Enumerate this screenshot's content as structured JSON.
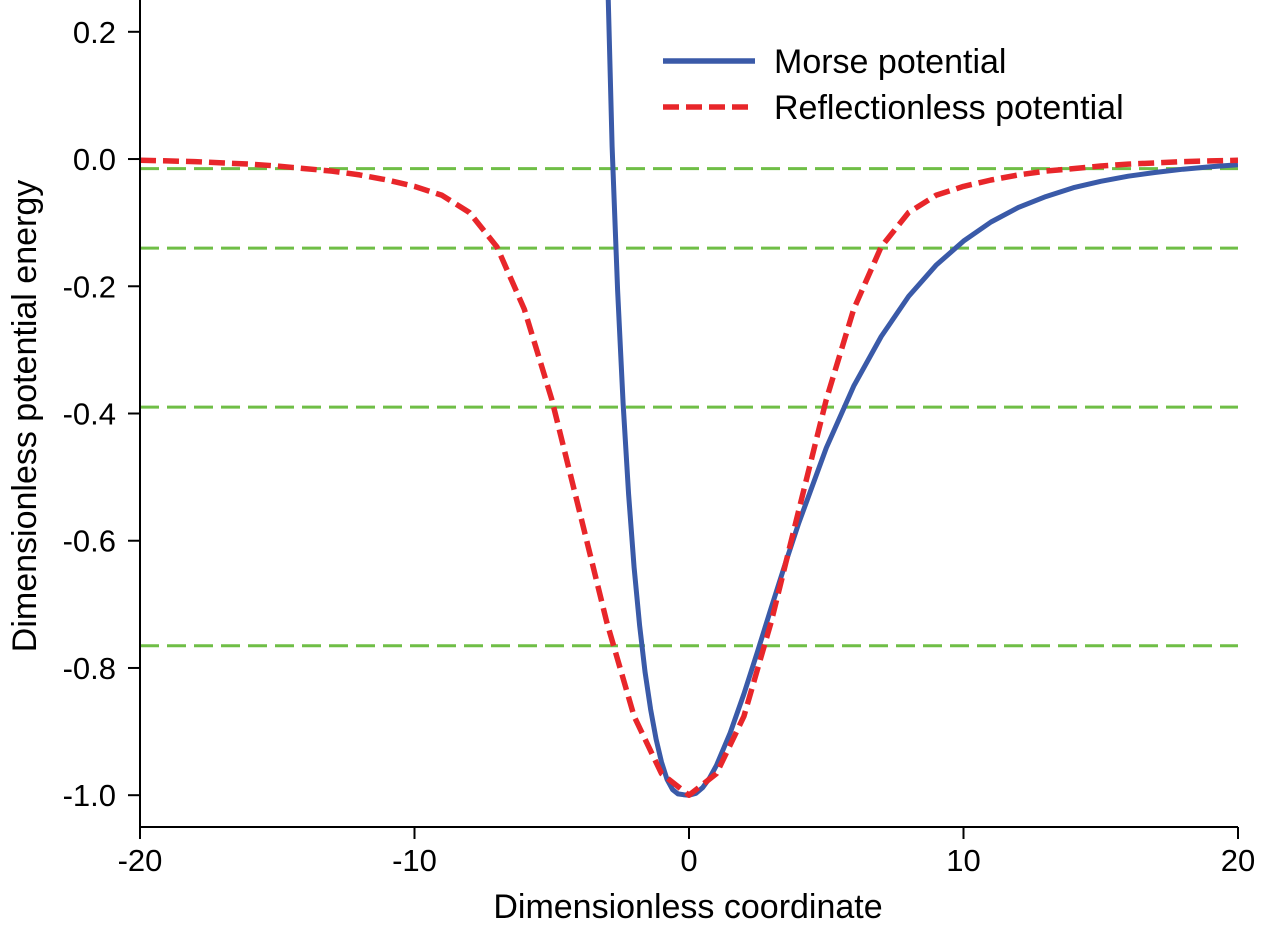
{
  "chart_data": {
    "type": "line",
    "xlabel": "Dimensionless coordinate",
    "ylabel": "Dimensionless potential energy",
    "xlim": [
      -20,
      20
    ],
    "ylim": [
      -1.05,
      0.25
    ],
    "xticks": [
      -20,
      -10,
      0,
      10,
      20
    ],
    "xtick_labels": [
      "-20",
      "-10",
      "0",
      "10",
      "20"
    ],
    "yticks": [
      -1.0,
      -0.8,
      -0.6,
      -0.4,
      -0.2,
      0.0,
      0.2
    ],
    "ytick_labels": [
      "-1.0",
      "-0.8",
      "-0.6",
      "-0.4",
      "-0.2",
      "0.0",
      "0.2"
    ],
    "grid": false,
    "legend_position": "top-right",
    "series": [
      {
        "name": "Morse potential",
        "color": "#3a5aa8",
        "style": "solid",
        "x": [
          -2.95,
          -2.8,
          -2.6,
          -2.4,
          -2.2,
          -2.0,
          -1.8,
          -1.6,
          -1.4,
          -1.2,
          -1.0,
          -0.8,
          -0.6,
          -0.4,
          -0.2,
          0.0,
          0.25,
          0.5,
          0.75,
          1.0,
          1.5,
          2.0,
          2.5,
          3.0,
          3.5,
          4.0,
          5.0,
          6.0,
          7.0,
          8.0,
          9.0,
          10.0,
          11.0,
          12.0,
          13.0,
          14.0,
          15.0,
          16.0,
          17.0,
          18.0,
          19.0,
          20.0
        ],
        "y": [
          0.266,
          0.02,
          -0.206,
          -0.384,
          -0.527,
          -0.642,
          -0.733,
          -0.807,
          -0.865,
          -0.912,
          -0.948,
          -0.975,
          -0.991,
          -0.998,
          -0.9993,
          -1.0,
          -0.997,
          -0.988,
          -0.973,
          -0.953,
          -0.902,
          -0.841,
          -0.774,
          -0.705,
          -0.637,
          -0.572,
          -0.454,
          -0.357,
          -0.279,
          -0.216,
          -0.167,
          -0.129,
          -0.099,
          -0.076,
          -0.059,
          -0.045,
          -0.035,
          -0.027,
          -0.021,
          -0.016,
          -0.012,
          -0.009
        ]
      },
      {
        "name": "Reflectionless potential",
        "color": "#e8262a",
        "style": "dashed",
        "x": [
          -20,
          -19,
          -18,
          -17,
          -16,
          -15,
          -14,
          -13,
          -12,
          -11,
          -10,
          -9,
          -8,
          -7,
          -6,
          -5,
          -4,
          -3,
          -2,
          -1,
          0,
          1,
          2,
          3,
          4,
          5,
          6,
          7,
          8,
          9,
          10,
          11,
          12,
          13,
          14,
          15,
          16,
          17,
          18,
          19,
          20
        ],
        "y": [
          -0.002,
          -0.003,
          -0.004,
          -0.006,
          -0.008,
          -0.011,
          -0.015,
          -0.019,
          -0.025,
          -0.033,
          -0.043,
          -0.057,
          -0.084,
          -0.138,
          -0.236,
          -0.378,
          -0.552,
          -0.727,
          -0.876,
          -0.966,
          -1.0,
          -0.966,
          -0.876,
          -0.727,
          -0.552,
          -0.378,
          -0.236,
          -0.138,
          -0.084,
          -0.057,
          -0.043,
          -0.033,
          -0.025,
          -0.019,
          -0.015,
          -0.011,
          -0.008,
          -0.006,
          -0.004,
          -0.003,
          -0.002
        ]
      }
    ],
    "reference_lines": {
      "color": "#6fbe46",
      "style": "dashed",
      "y": [
        -0.015,
        -0.14,
        -0.39,
        -0.765
      ]
    }
  }
}
